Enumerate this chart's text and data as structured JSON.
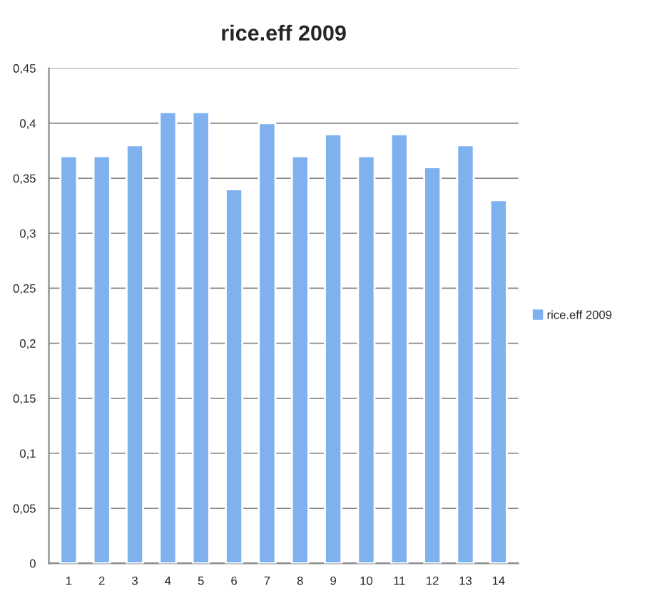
{
  "chart_data": {
    "type": "bar",
    "title": "rice.eff 2009",
    "categories": [
      "1",
      "2",
      "3",
      "4",
      "5",
      "6",
      "7",
      "8",
      "9",
      "10",
      "11",
      "12",
      "13",
      "14"
    ],
    "series": [
      {
        "name": "rice.eff 2009",
        "color": "#7eb1ee",
        "values": [
          0.37,
          0.37,
          0.38,
          0.41,
          0.41,
          0.34,
          0.4,
          0.37,
          0.39,
          0.37,
          0.39,
          0.36,
          0.38,
          0.33
        ]
      }
    ],
    "ylim": [
      0,
      0.45
    ],
    "yticks": [
      {
        "value": 0,
        "label": "0"
      },
      {
        "value": 0.05,
        "label": "0,05"
      },
      {
        "value": 0.1,
        "label": "0,1"
      },
      {
        "value": 0.15,
        "label": "0,15"
      },
      {
        "value": 0.2,
        "label": "0,2"
      },
      {
        "value": 0.25,
        "label": "0,25"
      },
      {
        "value": 0.3,
        "label": "0,3"
      },
      {
        "value": 0.35,
        "label": "0,35"
      },
      {
        "value": 0.4,
        "label": "0,4"
      },
      {
        "value": 0.45,
        "label": "0,45"
      }
    ],
    "grid": "y",
    "legend": "right"
  }
}
